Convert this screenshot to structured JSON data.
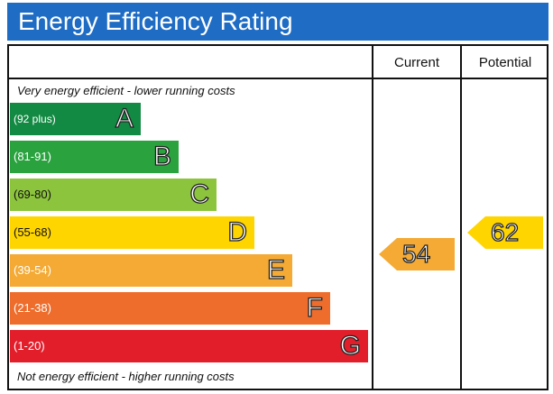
{
  "title": "Energy Efficiency Rating",
  "columns": {
    "current": "Current",
    "potential": "Potential"
  },
  "top_note": "Very energy efficient - lower running costs",
  "bottom_note": "Not energy efficient - higher running costs",
  "chart_data": {
    "type": "bar",
    "title": "Energy Efficiency Rating",
    "categories": [
      "A",
      "B",
      "C",
      "D",
      "E",
      "F",
      "G"
    ],
    "ranges": [
      "(92 plus)",
      "(81-91)",
      "(69-80)",
      "(55-68)",
      "(39-54)",
      "(21-38)",
      "(1-20)"
    ],
    "colors": [
      "#138a43",
      "#2aa33f",
      "#8cc43d",
      "#ffd500",
      "#f4aa34",
      "#ee6d2c",
      "#e31e2b"
    ],
    "current": {
      "value": 54,
      "band": "E",
      "color": "#f4aa34"
    },
    "potential": {
      "value": 62,
      "band": "D",
      "color": "#ffd500"
    }
  }
}
